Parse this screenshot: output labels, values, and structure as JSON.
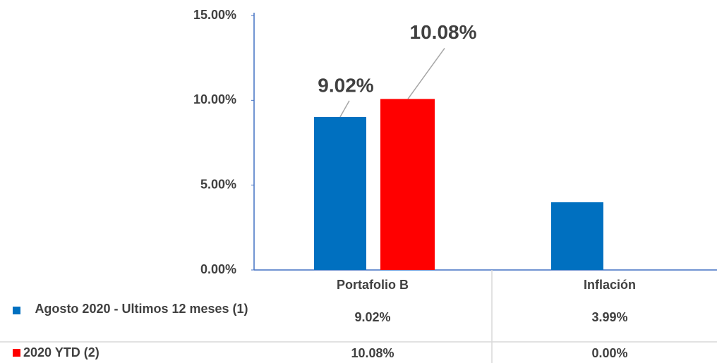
{
  "chart_data": {
    "type": "bar",
    "categories": [
      "Portafolio B",
      "Inflación"
    ],
    "series": [
      {
        "name": "Agosto 2020 - Ultimos 12 meses  (1)",
        "color": "#0070c0",
        "values": [
          9.02,
          3.99
        ],
        "value_labels": [
          "9.02%",
          "3.99%"
        ]
      },
      {
        "name": "2020 YTD (2)",
        "color": "#ff0000",
        "values": [
          10.08,
          0.0
        ],
        "value_labels": [
          "10.08%",
          "0.00%"
        ]
      }
    ],
    "ylim": [
      0,
      15
    ],
    "yticks": [
      {
        "value": 0,
        "label": "0.00%"
      },
      {
        "value": 5,
        "label": "5.00%"
      },
      {
        "value": 10,
        "label": "10.00%"
      },
      {
        "value": 15,
        "label": "15.00%"
      }
    ],
    "grid": false,
    "data_table": true
  }
}
